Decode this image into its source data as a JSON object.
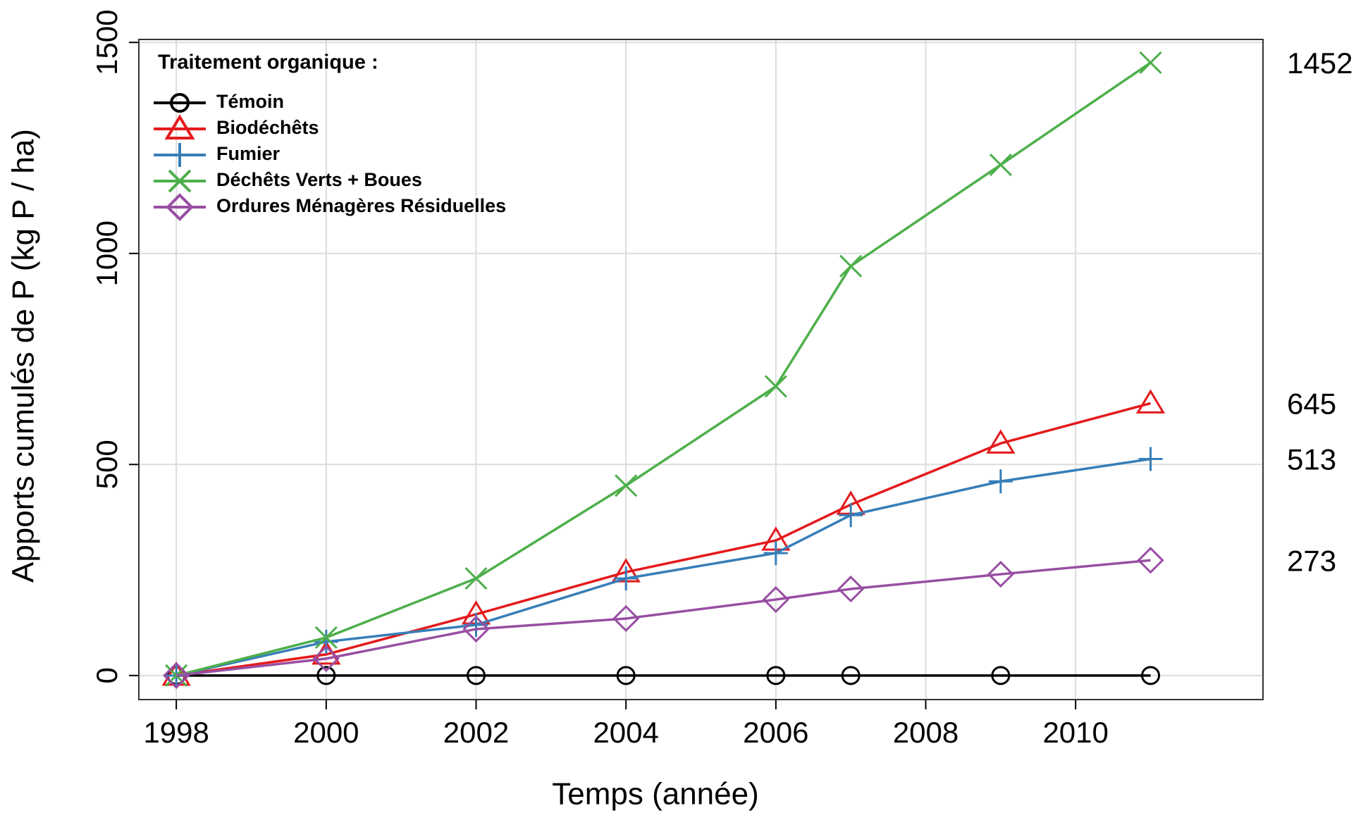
{
  "chart_data": {
    "type": "line",
    "x_label": "Temps (année)",
    "y_label": "Apports cumulés de P (kg P / ha)",
    "legend_title": "Traitement organique :",
    "legend_position": "top-left",
    "grid": true,
    "x": [
      1998,
      2000,
      2002,
      2004,
      2006,
      2007,
      2009,
      2011
    ],
    "xlim": [
      1997.5,
      2012.5
    ],
    "xticks": [
      1998,
      2000,
      2002,
      2004,
      2006,
      2008,
      2010
    ],
    "ylim": [
      -57,
      1507
    ],
    "yticks": [
      0,
      500,
      1000,
      1500
    ],
    "series": [
      {
        "name": "Témoin",
        "color": "#000000",
        "marker": "circle",
        "values": [
          0,
          0,
          0,
          0,
          0,
          0,
          0,
          0
        ]
      },
      {
        "name": "Biodéchêts",
        "color": "#e41a1c",
        "marker": "triangle",
        "values": [
          0,
          50,
          145,
          245,
          320,
          405,
          550,
          645
        ]
      },
      {
        "name": "Fumier",
        "color": "#377eb8",
        "marker": "plus",
        "values": [
          0,
          80,
          120,
          230,
          290,
          380,
          460,
          513
        ]
      },
      {
        "name": "Déchêts Verts + Boues",
        "color": "#4daf4a",
        "marker": "cross",
        "values": [
          0,
          90,
          230,
          450,
          685,
          970,
          1210,
          1452
        ]
      },
      {
        "name": "Ordures Ménagères Résiduelles",
        "color": "#984ea3",
        "marker": "diamond",
        "values": [
          0,
          40,
          110,
          135,
          180,
          205,
          240,
          273
        ]
      }
    ],
    "end_labels": [
      1452,
      645,
      513,
      273
    ]
  }
}
